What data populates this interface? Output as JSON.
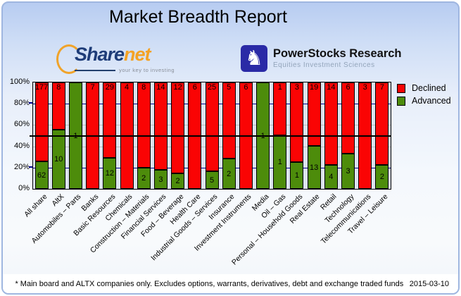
{
  "header": {
    "title": "Market Breadth Report",
    "sharenet_logo": {
      "part1": "Share",
      "part2": "net",
      "tagline": "your key to investing"
    },
    "powerstocks_logo": {
      "title": "PowerStocks Research",
      "subtitle": "Equities Investment Sciences",
      "icon": "knight-chess-icon",
      "icon_glyph": "♞"
    }
  },
  "chart_data": {
    "type": "bar",
    "variant": "stacked-100-percent-column",
    "title": "Market Breadth Report",
    "categories": [
      "All share",
      "AltX",
      "Automobiles – Parts",
      "Banks",
      "Basic Resources",
      "Chemicals",
      "Construction – Materials",
      "Financial Services",
      "Food – Beverage",
      "Health Care",
      "Industrial Goods – Services",
      "Insurance",
      "Investment Instruments",
      "Media",
      "Oil – Gas",
      "Personal – Household Goods",
      "Real Estate",
      "Retail",
      "Technology",
      "Telecommunications",
      "Travel – Leisure"
    ],
    "series": [
      {
        "name": "Declined",
        "color": "#fa0404",
        "values": [
          177,
          8,
          0,
          7,
          29,
          4,
          8,
          14,
          12,
          6,
          25,
          5,
          6,
          0,
          1,
          3,
          19,
          14,
          6,
          3,
          7
        ]
      },
      {
        "name": "Advanced",
        "color": "#4d8c0b",
        "values": [
          62,
          10,
          1,
          0,
          12,
          0,
          2,
          3,
          2,
          0,
          5,
          2,
          0,
          1,
          1,
          1,
          13,
          4,
          3,
          0,
          2
        ]
      }
    ],
    "value_labels": "counts shown inside bar segments; bars normalized to 100%",
    "y_axis": {
      "ticks": [
        "100%",
        "80%",
        "60%",
        "40%",
        "20%",
        "0%"
      ],
      "min": 0,
      "max": 100
    },
    "gridlines": {
      "navy_at": [
        80,
        20
      ],
      "gray_at": [
        60,
        40
      ],
      "black_line_at": [
        50
      ]
    },
    "legend": {
      "position": "top-right",
      "entries": [
        "Declined",
        "Advanced"
      ]
    }
  },
  "footer": {
    "note": "* Main board and ALTX companies only. Excludes options, warrants, derivatives, debt and exchange traded funds",
    "date": "2015-03-10"
  },
  "colors": {
    "declined": "#fa0404",
    "advanced": "#4d8c0b",
    "plot_bg": "#dde4ef",
    "navy_grid": "#00008b",
    "gray_grid": "#bdbdbd",
    "card_border": "#9fb6e0"
  }
}
